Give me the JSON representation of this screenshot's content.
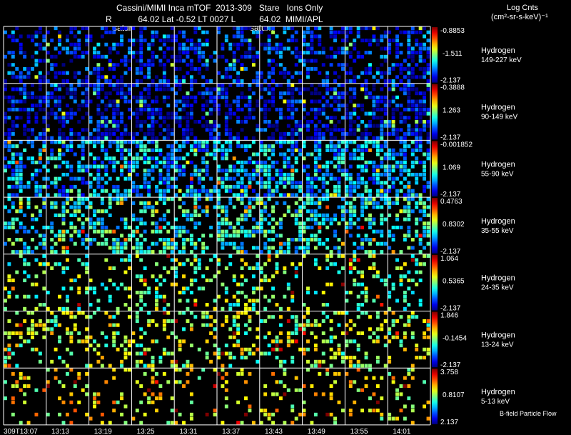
{
  "header": {
    "line1": "Cassini/MIMI Inca mTOF  2013-309   Stare   Ions Only",
    "line2": "R           64.02 Lat -0.52 LT 0027 L          64.02  MIMI/APL",
    "saturn_labels": [
      "satur",
      "saturn"
    ],
    "units_title": "Log Cnts",
    "units_formula": "(cm²-sr-s-keV)⁻¹"
  },
  "chart_data": {
    "type": "heatmap",
    "x_tick_labels": [
      "309T13:07",
      "13:13",
      "13:19",
      "13:25",
      "13:31",
      "13:37",
      "13:43",
      "13:49",
      "13:55",
      "14:01"
    ],
    "footer_label": "B-field Particle Flow",
    "rows": [
      {
        "species": "Hydrogen",
        "energy": "149-227 keV",
        "cmax": "-0.8853",
        "cmid": "-1.511",
        "cmin": "-2.137",
        "level": 0.15,
        "density": 0.45
      },
      {
        "species": "Hydrogen",
        "energy": "90-149 keV",
        "cmax": "-0.3888",
        "cmid": "1.263",
        "cmin": "-2.137",
        "level": 0.1,
        "density": 0.55
      },
      {
        "species": "Hydrogen",
        "energy": "55-90 keV",
        "cmax": "-0.001852",
        "cmid": "1.069",
        "cmin": "-2.137",
        "level": 0.3,
        "density": 0.55
      },
      {
        "species": "Hydrogen",
        "energy": "35-55 keV",
        "cmax": "0.4763",
        "cmid": "0.8302",
        "cmin": "-2.137",
        "level": 0.38,
        "density": 0.45
      },
      {
        "species": "Hydrogen",
        "energy": "24-35 keV",
        "cmax": "1.064",
        "cmid": "0.5365",
        "cmin": "-2.137",
        "level": 0.5,
        "density": 0.22
      },
      {
        "species": "Hydrogen",
        "energy": "13-24 keV",
        "cmax": "1.846",
        "cmid": "-0.1454",
        "cmin": "-2.137",
        "level": 0.55,
        "density": 0.3
      },
      {
        "species": "Hydrogen",
        "energy": "5-13 keV",
        "cmax": "3.758",
        "cmid": "0.8107",
        "cmin": "2.137",
        "level": 0.62,
        "density": 0.18
      }
    ]
  }
}
